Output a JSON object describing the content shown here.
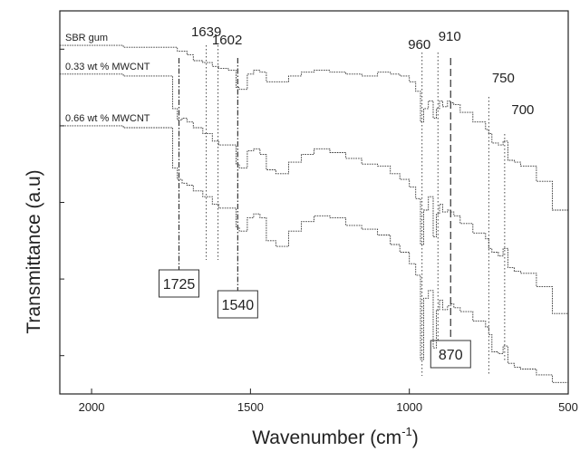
{
  "chart_data": {
    "type": "line",
    "xlabel": "Wavenumber (cm",
    "xlabel_superscript": "-1",
    "xlabel_suffix": ")",
    "ylabel": "Transmittance (a.u)",
    "xlim": [
      2100,
      500
    ],
    "x_reversed": true,
    "x_ticks": [
      2000,
      1500,
      1000,
      500
    ],
    "y_tick_count": 5,
    "grid": false,
    "series": [
      {
        "name": "SBR gum",
        "x": [
          2100,
          2000,
          1900,
          1800,
          1760,
          1730,
          1700,
          1680,
          1650,
          1620,
          1600,
          1570,
          1545,
          1535,
          1510,
          1490,
          1470,
          1450,
          1420,
          1380,
          1340,
          1300,
          1250,
          1200,
          1150,
          1100,
          1060,
          1030,
          1000,
          980,
          965,
          955,
          940,
          925,
          915,
          905,
          895,
          880,
          870,
          860,
          840,
          800,
          760,
          750,
          740,
          720,
          705,
          690,
          670,
          650,
          600,
          550,
          500
        ],
        "y": [
          91,
          91,
          90.5,
          90.5,
          90.5,
          89.5,
          88.5,
          87,
          86.5,
          85.5,
          85,
          84.5,
          80,
          79.5,
          83.5,
          84.5,
          84,
          81.5,
          81.5,
          83,
          84,
          84.5,
          84,
          83.5,
          83,
          84,
          83.5,
          83,
          81.5,
          79,
          71,
          74.5,
          76.5,
          72,
          74.5,
          76.5,
          75,
          76.5,
          76,
          75.5,
          73.5,
          71,
          69,
          68,
          65.5,
          65,
          66,
          61,
          60.5,
          59.5,
          55.5,
          48,
          38
        ]
      },
      {
        "name": "0.33 wt % MWCNT",
        "x": [
          2100,
          2000,
          1900,
          1800,
          1760,
          1745,
          1730,
          1715,
          1700,
          1680,
          1650,
          1620,
          1600,
          1570,
          1545,
          1535,
          1510,
          1490,
          1470,
          1450,
          1420,
          1380,
          1340,
          1300,
          1250,
          1200,
          1150,
          1100,
          1060,
          1030,
          1000,
          980,
          965,
          955,
          940,
          925,
          915,
          905,
          895,
          880,
          870,
          860,
          840,
          800,
          760,
          750,
          740,
          720,
          705,
          690,
          670,
          650,
          600,
          550,
          500
        ],
        "y": [
          83.5,
          83.5,
          83,
          83,
          83,
          74.5,
          71.5,
          72,
          71,
          69.5,
          68,
          66,
          65,
          65,
          60,
          59,
          63.5,
          64,
          62.5,
          58.5,
          57.5,
          60.5,
          62.5,
          64,
          63,
          61.5,
          60,
          59.5,
          57.5,
          56,
          54,
          51,
          39,
          48,
          51.5,
          41,
          47,
          49.5,
          47.5,
          48,
          47.5,
          46.5,
          44.5,
          42,
          40.5,
          38,
          37,
          36,
          38,
          33,
          32,
          31.5,
          28,
          21,
          12
        ]
      },
      {
        "name": "0.66 wt % MWCNT",
        "x": [
          2100,
          2000,
          1900,
          1800,
          1760,
          1745,
          1730,
          1715,
          1700,
          1680,
          1650,
          1620,
          1600,
          1570,
          1545,
          1535,
          1510,
          1490,
          1470,
          1450,
          1420,
          1380,
          1340,
          1300,
          1250,
          1200,
          1150,
          1100,
          1060,
          1030,
          1000,
          980,
          965,
          955,
          940,
          925,
          915,
          905,
          895,
          880,
          870,
          860,
          840,
          800,
          760,
          750,
          740,
          720,
          705,
          690,
          670,
          650,
          600,
          550,
          500
        ],
        "y": [
          70,
          70,
          69.5,
          69.5,
          69.5,
          59,
          56,
          55,
          54.5,
          53,
          51.5,
          49.5,
          48.5,
          48.5,
          43.5,
          42.5,
          46,
          47,
          46,
          40,
          38.5,
          42.5,
          45,
          46.5,
          46,
          44,
          43,
          41.5,
          39,
          37,
          34,
          31,
          9,
          25,
          27,
          12,
          22,
          24.5,
          22,
          23,
          23.5,
          22.5,
          21.5,
          19,
          17.5,
          15.5,
          11,
          10.5,
          12.5,
          8,
          7,
          6.5,
          5,
          3,
          1
        ]
      }
    ],
    "peak_labels": [
      {
        "label": "1639",
        "x": 1639,
        "boxed": false
      },
      {
        "label": "1602",
        "x": 1602,
        "boxed": false
      },
      {
        "label": "960",
        "x": 960,
        "boxed": false
      },
      {
        "label": "910",
        "x": 910,
        "boxed": false
      },
      {
        "label": "750",
        "x": 750,
        "boxed": false
      },
      {
        "label": "700",
        "x": 700,
        "boxed": false
      },
      {
        "label": "1725",
        "x": 1725,
        "boxed": true
      },
      {
        "label": "1540",
        "x": 1540,
        "boxed": true
      },
      {
        "label": "870",
        "x": 870,
        "boxed": true
      }
    ]
  }
}
